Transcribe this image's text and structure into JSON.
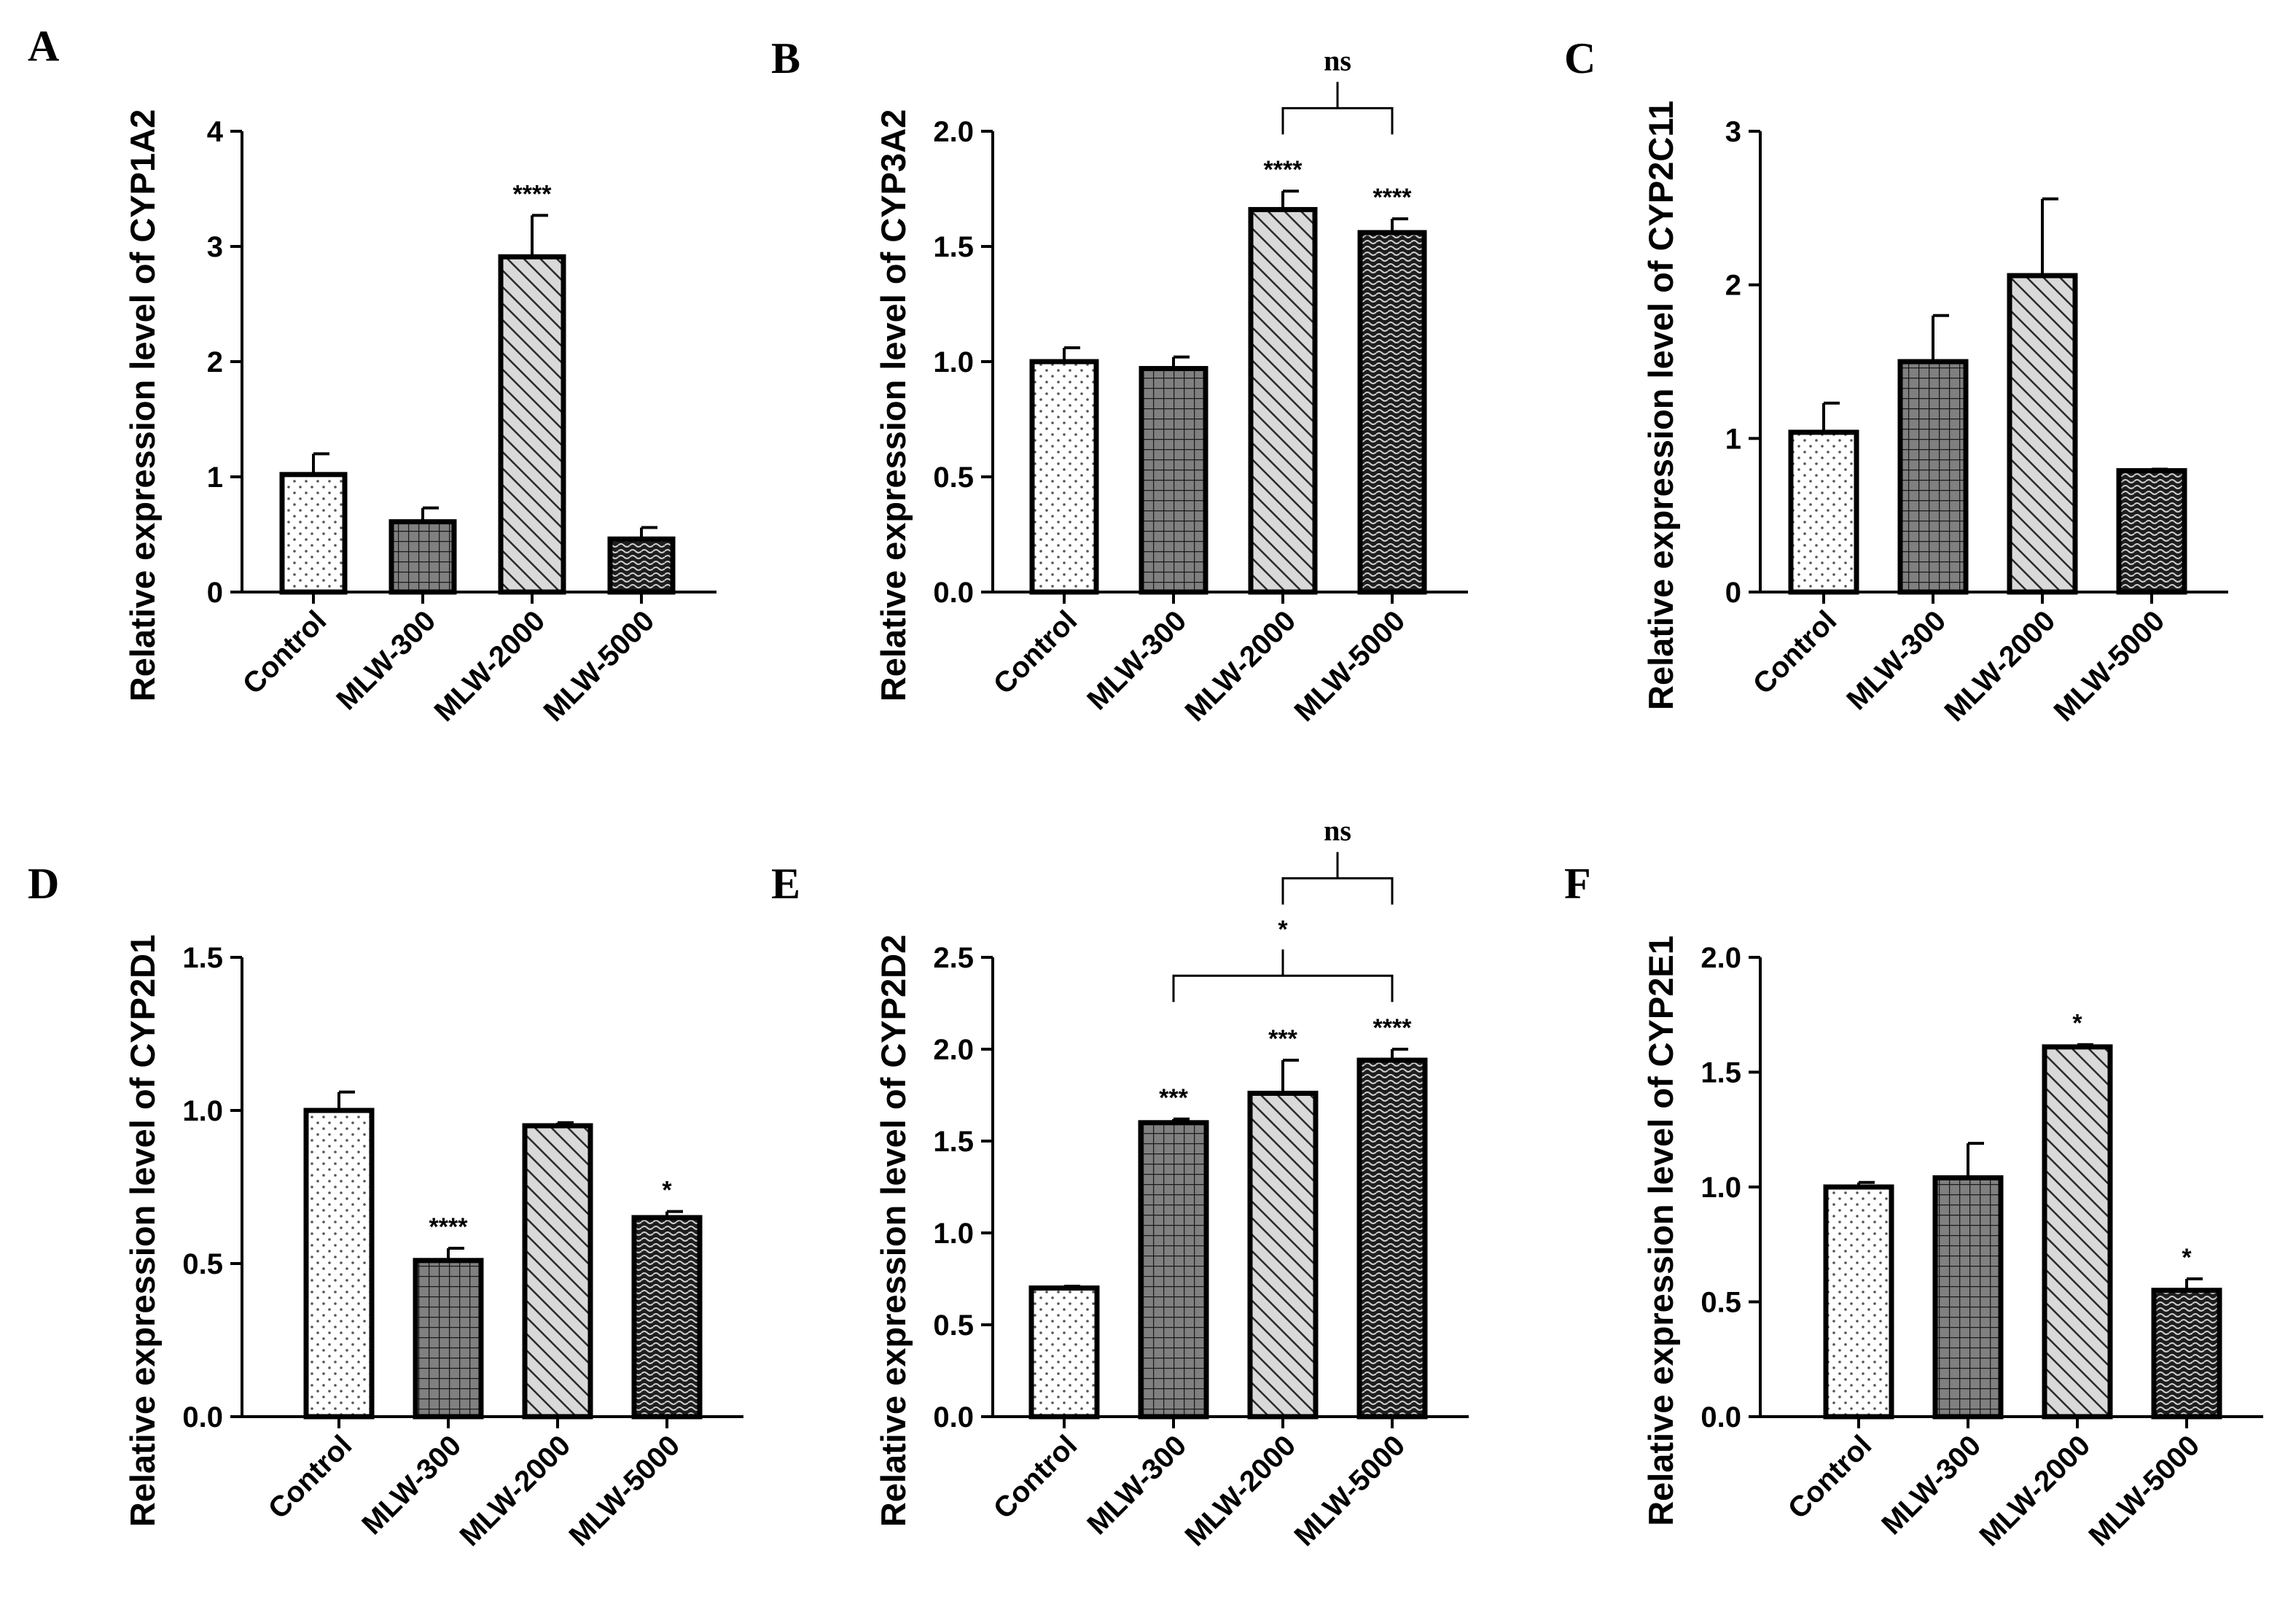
{
  "styles": {
    "bar_stroke": "#000000",
    "patterns": [
      "dots",
      "grid",
      "diagonal",
      "weave"
    ],
    "colors": {
      "dots_bg": "#ffffff",
      "grid_bg": "#808080",
      "diagonal_bg": "#d9d9d9",
      "weave_bg": "#1e1e1e"
    }
  },
  "chart_data": [
    {
      "panel": "A",
      "type": "bar",
      "categories": [
        "Control",
        "MLW-300",
        "MLW-2000",
        "MLW-5000"
      ],
      "values": [
        1.02,
        0.61,
        2.91,
        0.46
      ],
      "errors": [
        0.18,
        0.12,
        0.36,
        0.1
      ],
      "ylabel": "Relative expression level of CYP1A2",
      "ylim": [
        0,
        4
      ],
      "yticks": [
        0,
        1,
        2,
        3,
        4
      ],
      "tick_labels": [
        "0",
        "1",
        "2",
        "3",
        "4"
      ],
      "sig": [
        "",
        "",
        "****",
        ""
      ],
      "brackets": []
    },
    {
      "panel": "B",
      "type": "bar",
      "categories": [
        "Control",
        "MLW-300",
        "MLW-2000",
        "MLW-5000"
      ],
      "values": [
        1.0,
        0.97,
        1.66,
        1.56
      ],
      "errors": [
        0.06,
        0.05,
        0.08,
        0.06
      ],
      "ylabel": "Relative expression level of CYP3A2",
      "ylim": [
        0,
        2.0
      ],
      "yticks": [
        0,
        0.5,
        1.0,
        1.5,
        2.0
      ],
      "tick_labels": [
        "0.0",
        "0.5",
        "1.0",
        "1.5",
        "2.0"
      ],
      "sig": [
        "",
        "",
        "****",
        "****"
      ],
      "brackets": [
        {
          "from": 2,
          "to": 3,
          "level": 2.1,
          "label": "ns"
        }
      ]
    },
    {
      "panel": "C",
      "type": "bar",
      "categories": [
        "Control",
        "MLW-300",
        "MLW-2000",
        "MLW-5000"
      ],
      "values": [
        1.04,
        1.5,
        2.06,
        0.79
      ],
      "errors": [
        0.19,
        0.3,
        0.5,
        0.01
      ],
      "ylabel": "Relative expression level of CYP2C11",
      "ylim": [
        0,
        3
      ],
      "yticks": [
        0,
        1,
        2,
        3
      ],
      "tick_labels": [
        "0",
        "1",
        "2",
        "3"
      ],
      "sig": [
        "",
        "",
        "",
        ""
      ],
      "brackets": []
    },
    {
      "panel": "D",
      "type": "bar",
      "categories": [
        "Control",
        "MLW-300",
        "MLW-2000",
        "MLW-5000"
      ],
      "values": [
        1.0,
        0.51,
        0.95,
        0.65
      ],
      "errors": [
        0.06,
        0.04,
        0.01,
        0.02
      ],
      "ylabel": "Relative expression level of CYP2D1",
      "ylim": [
        0,
        1.5
      ],
      "yticks": [
        0,
        0.5,
        1.0,
        1.5
      ],
      "tick_labels": [
        "0.0",
        "0.5",
        "1.0",
        "1.5"
      ],
      "sig": [
        "",
        "****",
        "",
        "*"
      ],
      "brackets": []
    },
    {
      "panel": "E",
      "type": "bar",
      "categories": [
        "Control",
        "MLW-300",
        "MLW-2000",
        "MLW-5000"
      ],
      "values": [
        0.7,
        1.6,
        1.76,
        1.94
      ],
      "errors": [
        0.01,
        0.02,
        0.18,
        0.06
      ],
      "ylabel": "Relative expression level of CYP2D2",
      "ylim": [
        0,
        2.5
      ],
      "yticks": [
        0,
        0.5,
        1.0,
        1.5,
        2.0,
        2.5
      ],
      "tick_labels": [
        "0.0",
        "0.5",
        "1.0",
        "1.5",
        "2.0",
        "2.5"
      ],
      "sig": [
        "",
        "***",
        "***",
        "****"
      ],
      "brackets": [
        {
          "from": 1,
          "to": 3,
          "level": 2.4,
          "label": "*"
        },
        {
          "from": 2,
          "to": 3,
          "level": 2.93,
          "label": "ns"
        }
      ]
    },
    {
      "panel": "F",
      "type": "bar",
      "categories": [
        "Control",
        "MLW-300",
        "MLW-2000",
        "MLW-5000"
      ],
      "values": [
        1.0,
        1.04,
        1.61,
        0.55
      ],
      "errors": [
        0.02,
        0.15,
        0.01,
        0.05
      ],
      "ylabel": "Relative expression level of CYP2E1",
      "ylim": [
        0,
        2.0
      ],
      "yticks": [
        0,
        0.5,
        1.0,
        1.5,
        2.0
      ],
      "tick_labels": [
        "0.0",
        "0.5",
        "1.0",
        "1.5",
        "2.0"
      ],
      "sig": [
        "",
        "",
        "*",
        "*"
      ],
      "brackets": []
    }
  ]
}
